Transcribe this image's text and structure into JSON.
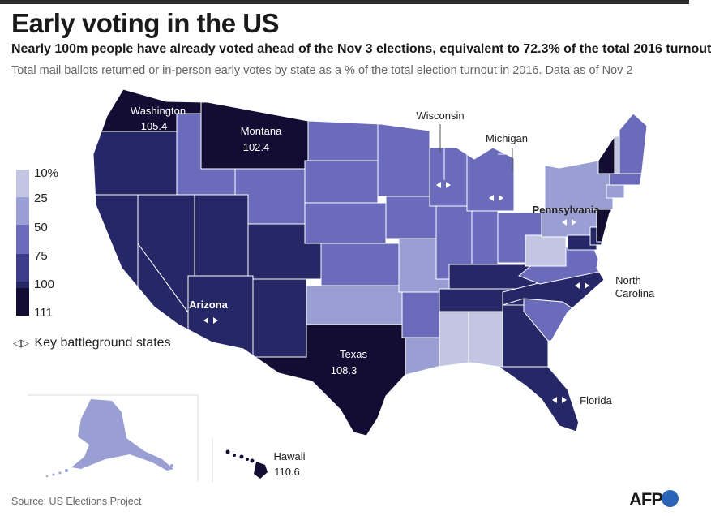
{
  "title": "Early voting in the US",
  "subtitle": "Nearly 100m people have already voted ahead of the Nov 3 elections, equivalent to 72.3% of the total 2016 turnout",
  "description": "Total mail ballots returned or in-person early votes by state as a % of the total election turnout in 2016. Data as of Nov 2",
  "legend": {
    "ticks": [
      "10%",
      "25",
      "50",
      "75",
      "100",
      "111"
    ],
    "colors": [
      "#c3c6e3",
      "#9a9fd3",
      "#6a6bbb",
      "#3c3d8a",
      "#262766",
      "#130d33"
    ]
  },
  "key": {
    "icon": "◁▷",
    "label": "Key battleground states"
  },
  "labels": {
    "washington": {
      "name": "Washington",
      "value": "105.4"
    },
    "montana": {
      "name": "Montana",
      "value": "102.4"
    },
    "texas": {
      "name": "Texas",
      "value": "108.3"
    },
    "hawaii": {
      "name": "Hawaii",
      "value": "110.6"
    },
    "wisconsin": "Wisconsin",
    "michigan": "Michigan",
    "pennsylvania": "Pennsylvania",
    "north_carolina_1": "North",
    "north_carolina_2": "Carolina",
    "arizona": "Arizona",
    "florida": "Florida"
  },
  "source": "Source: US Elections Project",
  "brand": "AFP"
}
